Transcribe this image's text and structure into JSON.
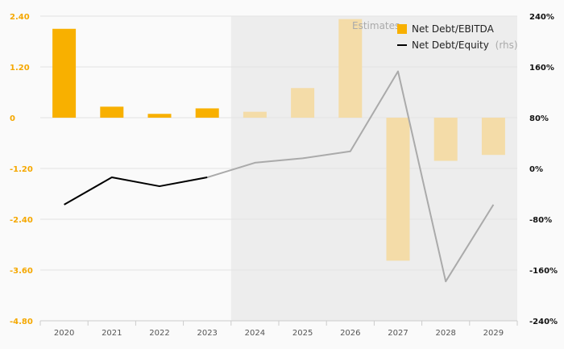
{
  "chart_data": {
    "type": "bar+line",
    "categories": [
      "2020",
      "2021",
      "2022",
      "2023",
      "2024",
      "2025",
      "2026",
      "2027",
      "2028",
      "2029"
    ],
    "estimates_label": "Estimates",
    "estimates_start_index": 4,
    "series": [
      {
        "name": "Net Debt/EBITDA",
        "type": "bar",
        "axis": "left",
        "values": [
          2.1,
          0.26,
          0.09,
          0.22,
          0.14,
          0.7,
          2.33,
          -3.38,
          -1.02,
          -0.88
        ]
      },
      {
        "name": "Net Debt/Equity",
        "legend_suffix": "(rhs)",
        "type": "line",
        "axis": "right",
        "values": [
          -57,
          -14,
          -28,
          -14,
          9,
          16,
          27,
          153,
          -178,
          -57
        ]
      }
    ],
    "left_axis": {
      "ylim": [
        -4.8,
        2.4
      ],
      "ticks": [
        "2.40",
        "1.20",
        "0",
        "-1.20",
        "-2.40",
        "-3.60",
        "-4.80"
      ],
      "tick_values": [
        2.4,
        1.2,
        0,
        -1.2,
        -2.4,
        -3.6,
        -4.8
      ]
    },
    "right_axis": {
      "ylim": [
        -240,
        240
      ],
      "ticks": [
        "240%",
        "160%",
        "80%",
        "0%",
        "-80%",
        "-160%",
        "-240%"
      ],
      "tick_values": [
        240,
        160,
        80,
        0,
        -80,
        -160,
        -240
      ]
    },
    "legend_position": "top-right",
    "grid": true,
    "colors": {
      "bar_actual": "#f8b000",
      "bar_estimate": "#f4dca8",
      "line_actual": "#000000",
      "line_estimate": "#aaaaaa",
      "estimate_band": "#ededed",
      "left_tick": "#f5a800"
    }
  }
}
